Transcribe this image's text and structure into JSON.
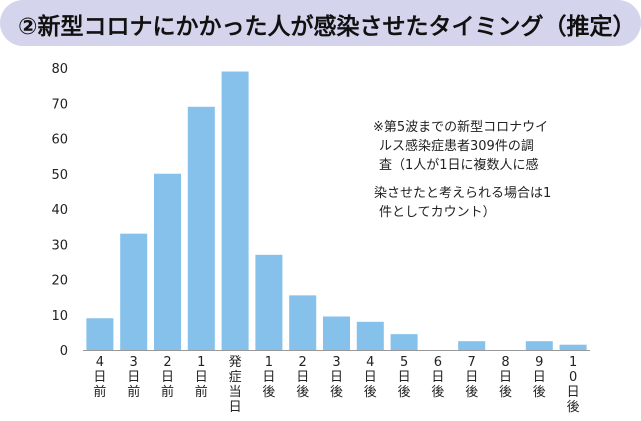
{
  "title": "②新型コロナにかかった人が感染させたタイミング（推定）",
  "note": {
    "lines": [
      "※第5波までの新型コロナウイ",
      "ルス感染症患者309件の調",
      "査（1人が1日に複数人に感",
      "染させたと考えられる場合は1",
      "件としてカウント）"
    ]
  },
  "chart_data": {
    "type": "bar",
    "categories": [
      "4日前",
      "3日前",
      "2日前",
      "1日前",
      "発症当日",
      "1日後",
      "2日後",
      "3日後",
      "4日後",
      "5日後",
      "6日後",
      "7日後",
      "8日後",
      "9日後",
      "10日後"
    ],
    "values": [
      9,
      33,
      50,
      69,
      79,
      27,
      15.5,
      9.5,
      8,
      4.5,
      0,
      2.5,
      0,
      2.5,
      1.5
    ],
    "ylim": [
      0,
      80
    ],
    "yticks": [
      0,
      10,
      20,
      30,
      40,
      50,
      60,
      70,
      80
    ],
    "grid": false,
    "legend": "none",
    "colors": {
      "bar": "#85c1ea",
      "axis": "#999999",
      "title_bg": "#d4d4ec"
    }
  }
}
